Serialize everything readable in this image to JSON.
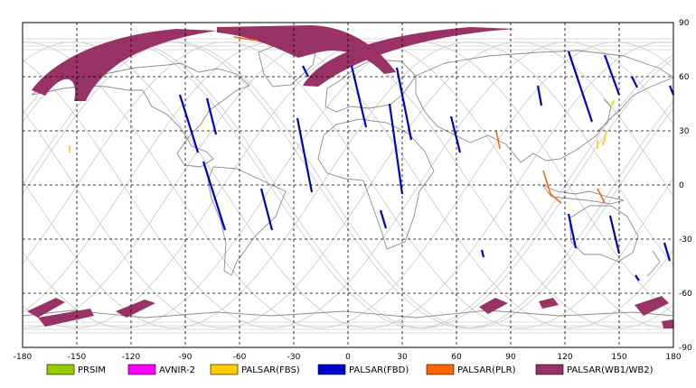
{
  "axes": {
    "x_ticks": [
      -180,
      -150,
      -120,
      -90,
      -60,
      -30,
      0,
      30,
      60,
      90,
      120,
      150,
      180
    ],
    "y_ticks": [
      90,
      60,
      30,
      0,
      -30,
      -60,
      -90
    ],
    "x_range": [
      -180,
      180
    ],
    "y_range": [
      -90,
      90
    ]
  },
  "legend": [
    {
      "label": "PRSIM",
      "color": "#99cc00"
    },
    {
      "label": "AVNIR-2",
      "color": "#ff00ff"
    },
    {
      "label": "PALSAR(FBS)",
      "color": "#ffcc00"
    },
    {
      "label": "PALSAR(FBD)",
      "color": "#0000cc"
    },
    {
      "label": "PALSAR(PLR)",
      "color": "#ff6600"
    },
    {
      "label": "PALSAR(WB1/WB2)",
      "color": "#993366"
    }
  ],
  "chart_data": {
    "type": "map",
    "projection": "equirectangular",
    "grid": true,
    "legend_position": "bottom",
    "swaths": {
      "PALSAR(FBD)": [
        {
          "from": [
            -93,
            50
          ],
          "to": [
            -83,
            18
          ]
        },
        {
          "from": [
            -78,
            48
          ],
          "to": [
            -73,
            28
          ]
        },
        {
          "from": [
            -80,
            13
          ],
          "to": [
            -68,
            -25
          ]
        },
        {
          "from": [
            -48,
            -2
          ],
          "to": [
            -42,
            -25
          ]
        },
        {
          "from": [
            -28,
            37
          ],
          "to": [
            -20,
            -4
          ]
        },
        {
          "from": [
            -25,
            66
          ],
          "to": [
            -22,
            60
          ]
        },
        {
          "from": [
            2,
            66
          ],
          "to": [
            10,
            32
          ]
        },
        {
          "from": [
            27,
            65
          ],
          "to": [
            35,
            25
          ]
        },
        {
          "from": [
            23,
            45
          ],
          "to": [
            30,
            -5
          ]
        },
        {
          "from": [
            18,
            -14
          ],
          "to": [
            21,
            -24
          ]
        },
        {
          "from": [
            57,
            38
          ],
          "to": [
            62,
            18
          ]
        },
        {
          "from": [
            74,
            -36
          ],
          "to": [
            75,
            -40
          ]
        },
        {
          "from": [
            105,
            55
          ],
          "to": [
            107,
            44
          ]
        },
        {
          "from": [
            122,
            74
          ],
          "to": [
            135,
            35
          ]
        },
        {
          "from": [
            142,
            72
          ],
          "to": [
            150,
            50
          ]
        },
        {
          "from": [
            122,
            -16
          ],
          "to": [
            126,
            -35
          ]
        },
        {
          "from": [
            145,
            -17
          ],
          "to": [
            150,
            -38
          ]
        },
        {
          "from": [
            157,
            60
          ],
          "to": [
            160,
            54
          ]
        },
        {
          "from": [
            178,
            55
          ],
          "to": [
            180,
            50
          ]
        },
        {
          "from": [
            175,
            -32
          ],
          "to": [
            178,
            -42
          ]
        },
        {
          "from": [
            159,
            -50
          ],
          "to": [
            161,
            -53
          ]
        }
      ],
      "PALSAR(FBS)": [
        {
          "from": [
            -154,
            22
          ],
          "to": [
            -154,
            18
          ]
        },
        {
          "from": [
            143,
            30
          ],
          "to": [
            141,
            22
          ]
        },
        {
          "from": [
            147,
            47
          ],
          "to": [
            146,
            44
          ]
        },
        {
          "from": [
            138,
            25
          ],
          "to": [
            138,
            20
          ]
        }
      ],
      "PALSAR(PLR)": [
        {
          "from": [
            -63,
            82
          ],
          "to": [
            -50,
            80
          ]
        },
        {
          "from": [
            82,
            30
          ],
          "to": [
            84,
            20
          ]
        },
        {
          "from": [
            108,
            8
          ],
          "to": [
            112,
            -5
          ]
        },
        {
          "from": [
            112,
            -5
          ],
          "to": [
            118,
            -10
          ]
        },
        {
          "from": [
            138,
            -2
          ],
          "to": [
            142,
            -10
          ]
        }
      ]
    }
  }
}
